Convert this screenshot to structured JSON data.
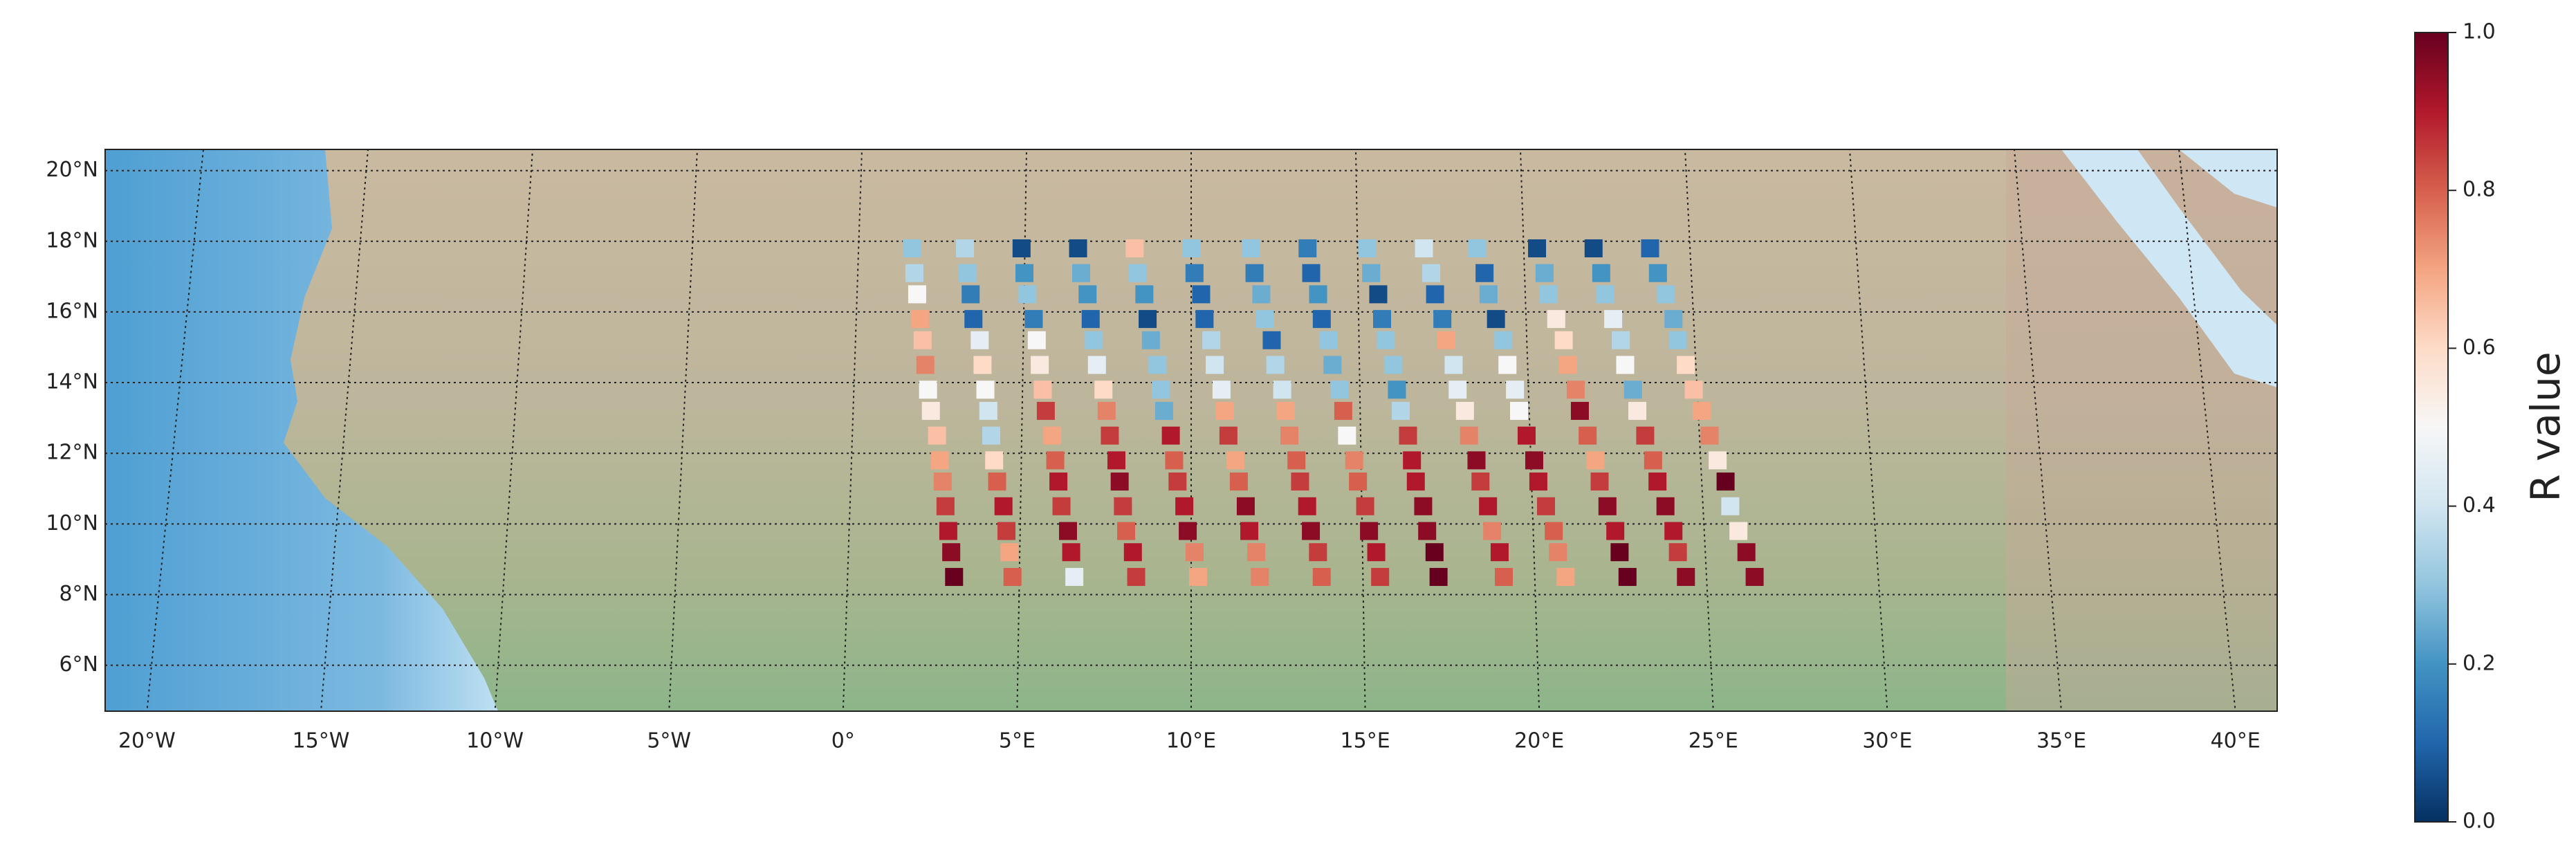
{
  "chart_data": {
    "type": "scatter",
    "colorbar_label": "R value",
    "colormap": "RdBu_r",
    "clim": [
      0,
      1
    ],
    "cticks": [
      {
        "value": 0,
        "label": "0.0"
      },
      0.2,
      0.4,
      0.6,
      0.8,
      {
        "value": 1,
        "label": "1.0"
      }
    ],
    "xlim": [
      -21.2,
      41.2
    ],
    "ylim": [
      4.7,
      20.6
    ],
    "xticks": [
      {
        "value": -20,
        "label": "20°W"
      },
      {
        "value": -15,
        "label": "15°W"
      },
      {
        "value": -10,
        "label": "10°W"
      },
      {
        "value": -5,
        "label": "5°W"
      },
      {
        "value": 0,
        "label": "0°"
      },
      {
        "value": 5,
        "label": "5°E"
      },
      {
        "value": 10,
        "label": "10°E"
      },
      {
        "value": 15,
        "label": "15°E"
      },
      {
        "value": 20,
        "label": "20°E"
      },
      {
        "value": 25,
        "label": "25°E"
      },
      {
        "value": 30,
        "label": "30°E"
      },
      {
        "value": 35,
        "label": "35°E"
      },
      {
        "value": 40,
        "label": "40°E"
      }
    ],
    "yticks": [
      {
        "value": 6,
        "label": "6°N"
      },
      {
        "value": 8,
        "label": "8°N"
      },
      {
        "value": 10,
        "label": "10°N"
      },
      {
        "value": 12,
        "label": "12°N"
      },
      {
        "value": 14,
        "label": "14°N"
      },
      {
        "value": 16,
        "label": "16°N"
      },
      {
        "value": 18,
        "label": "18°N"
      },
      {
        "value": 20,
        "label": "20°N"
      }
    ],
    "grid": true,
    "lat": [
      17.8,
      17.1,
      16.5,
      15.8,
      15.2,
      14.5,
      13.8,
      13.2,
      12.5,
      11.8,
      11.2,
      10.5,
      9.8,
      9.2,
      8.5
    ],
    "tracks": [
      {
        "lon": [
          1.6,
          1.7,
          1.8,
          1.9,
          2.0,
          2.1,
          2.2,
          2.3,
          2.5,
          2.6,
          2.7,
          2.8,
          2.9,
          3.0,
          3.1
        ],
        "values": [
          0.3,
          0.35,
          0.5,
          0.7,
          0.65,
          0.75,
          0.5,
          0.55,
          0.65,
          0.7,
          0.75,
          0.85,
          0.9,
          0.95,
          1.0
        ]
      },
      {
        "lon": [
          3.2,
          3.3,
          3.4,
          3.5,
          3.7,
          3.8,
          3.9,
          4.0,
          4.1,
          4.2,
          4.3,
          4.5,
          4.6,
          4.7,
          4.8
        ],
        "values": [
          0.35,
          0.3,
          0.15,
          0.1,
          0.45,
          0.6,
          0.5,
          0.4,
          0.35,
          0.6,
          0.8,
          0.9,
          0.85,
          0.7,
          0.8
        ]
      },
      {
        "lon": [
          4.9,
          5.0,
          5.1,
          5.3,
          5.4,
          5.5,
          5.6,
          5.7,
          5.9,
          6.0,
          6.1,
          6.2,
          6.4,
          6.5,
          6.6
        ],
        "values": [
          0.05,
          0.2,
          0.3,
          0.15,
          0.5,
          0.55,
          0.65,
          0.85,
          0.7,
          0.8,
          0.9,
          0.85,
          0.95,
          0.9,
          0.45
        ]
      },
      {
        "lon": [
          6.6,
          6.7,
          6.9,
          7.0,
          7.1,
          7.2,
          7.4,
          7.5,
          7.6,
          7.8,
          7.9,
          8.0,
          8.1,
          8.3,
          8.4
        ],
        "values": [
          0.05,
          0.25,
          0.2,
          0.1,
          0.3,
          0.45,
          0.6,
          0.75,
          0.85,
          0.9,
          0.95,
          0.85,
          0.8,
          0.9,
          0.85
        ]
      },
      {
        "lon": [
          8.3,
          8.4,
          8.6,
          8.7,
          8.8,
          9.0,
          9.1,
          9.2,
          9.4,
          9.5,
          9.6,
          9.8,
          9.9,
          10.1,
          10.2
        ],
        "values": [
          0.65,
          0.3,
          0.2,
          0.05,
          0.25,
          0.3,
          0.3,
          0.25,
          0.9,
          0.8,
          0.85,
          0.9,
          0.95,
          0.75,
          0.7
        ]
      },
      {
        "lon": [
          10.0,
          10.1,
          10.3,
          10.4,
          10.6,
          10.7,
          10.9,
          11.0,
          11.1,
          11.3,
          11.4,
          11.6,
          11.7,
          11.9,
          12.0
        ],
        "values": [
          0.3,
          0.15,
          0.1,
          0.1,
          0.35,
          0.4,
          0.45,
          0.7,
          0.85,
          0.7,
          0.8,
          0.95,
          0.9,
          0.75,
          0.75
        ]
      },
      {
        "lon": [
          11.8,
          11.9,
          12.1,
          12.2,
          12.4,
          12.5,
          12.7,
          12.8,
          12.9,
          13.1,
          13.2,
          13.4,
          13.5,
          13.7,
          13.8
        ],
        "values": [
          0.3,
          0.15,
          0.25,
          0.3,
          0.1,
          0.35,
          0.4,
          0.7,
          0.75,
          0.8,
          0.85,
          0.9,
          0.95,
          0.85,
          0.8
        ]
      },
      {
        "lon": [
          13.5,
          13.6,
          13.8,
          13.9,
          14.1,
          14.2,
          14.4,
          14.5,
          14.6,
          14.8,
          14.9,
          15.1,
          15.2,
          15.4,
          15.5
        ],
        "values": [
          0.15,
          0.1,
          0.2,
          0.1,
          0.3,
          0.25,
          0.3,
          0.8,
          0.5,
          0.75,
          0.8,
          0.85,
          0.95,
          0.9,
          0.85
        ]
      },
      {
        "lon": [
          15.3,
          15.4,
          15.6,
          15.7,
          15.8,
          16.0,
          16.1,
          16.2,
          16.4,
          16.5,
          16.6,
          16.8,
          16.9,
          17.1,
          17.2
        ],
        "values": [
          0.3,
          0.25,
          0.05,
          0.15,
          0.3,
          0.3,
          0.2,
          0.35,
          0.85,
          0.9,
          0.9,
          0.95,
          0.95,
          1.0,
          1.0
        ]
      },
      {
        "lon": [
          17.0,
          17.2,
          17.3,
          17.5,
          17.6,
          17.8,
          17.9,
          18.1,
          18.2,
          18.4,
          18.5,
          18.7,
          18.8,
          19.0,
          19.1
        ],
        "values": [
          0.4,
          0.35,
          0.1,
          0.15,
          0.7,
          0.4,
          0.45,
          0.55,
          0.75,
          0.95,
          0.85,
          0.9,
          0.75,
          0.9,
          0.8
        ]
      },
      {
        "lon": [
          18.6,
          18.8,
          18.9,
          19.1,
          19.3,
          19.4,
          19.6,
          19.7,
          19.9,
          20.1,
          20.2,
          20.4,
          20.6,
          20.7,
          20.9
        ],
        "values": [
          0.3,
          0.1,
          0.25,
          0.05,
          0.3,
          0.5,
          0.45,
          0.5,
          0.9,
          0.95,
          0.9,
          0.85,
          0.8,
          0.75,
          0.7
        ]
      },
      {
        "lon": [
          20.4,
          20.6,
          20.7,
          20.9,
          21.1,
          21.2,
          21.4,
          21.5,
          21.7,
          21.9,
          22.0,
          22.2,
          22.4,
          22.5,
          22.7
        ],
        "values": [
          0.05,
          0.25,
          0.3,
          0.55,
          0.6,
          0.7,
          0.75,
          0.95,
          0.8,
          0.7,
          0.85,
          0.95,
          0.9,
          1.0,
          1.0
        ]
      },
      {
        "lon": [
          22.1,
          22.3,
          22.4,
          22.6,
          22.8,
          22.9,
          23.1,
          23.2,
          23.4,
          23.6,
          23.7,
          23.9,
          24.1,
          24.2,
          24.4
        ],
        "values": [
          0.05,
          0.2,
          0.3,
          0.45,
          0.35,
          0.5,
          0.25,
          0.55,
          0.85,
          0.8,
          0.9,
          0.95,
          0.9,
          0.85,
          0.95
        ]
      },
      {
        "lon": [
          23.8,
          24.0,
          24.2,
          24.4,
          24.5,
          24.7,
          24.9,
          25.1,
          25.3,
          25.5,
          25.7,
          25.8,
          26.0,
          26.2,
          26.4
        ],
        "values": [
          0.1,
          0.2,
          0.3,
          0.25,
          0.3,
          0.6,
          0.65,
          0.7,
          0.75,
          0.55,
          1.0,
          0.4,
          0.55,
          0.95,
          0.95
        ]
      }
    ]
  }
}
